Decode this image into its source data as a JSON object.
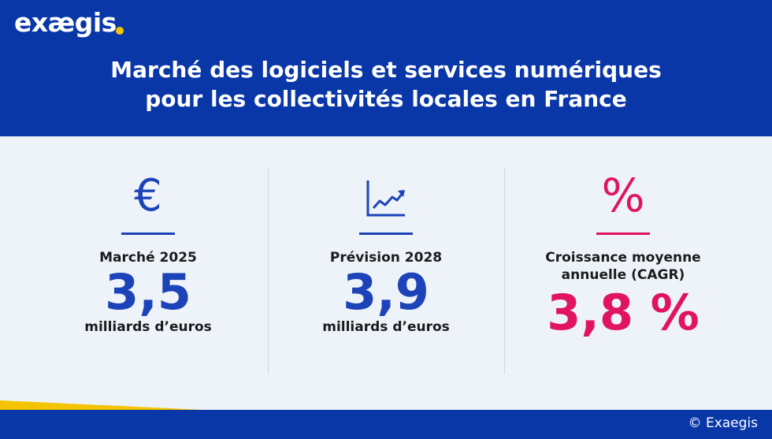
{
  "brand": {
    "name": "exægis",
    "dot_color": "#f5c400"
  },
  "header": {
    "title_line1": "Marché des logiciels et services numériques",
    "title_line2": "pour les collectivités locales en France"
  },
  "stats": [
    {
      "icon": "euro-icon",
      "label": "Marché 2025",
      "value": "3,5",
      "unit": "milliards d’euros",
      "color": "#1d43b8",
      "icon_glyph": "€"
    },
    {
      "icon": "growth-chart-icon",
      "label": "Prévision 2028",
      "value": "3,9",
      "unit": "milliards d’euros",
      "color": "#1d43b8"
    },
    {
      "icon": "percent-icon",
      "label_line1": "Croissance moyenne",
      "label_line2": "annuelle (CAGR)",
      "value": "3,8 %",
      "color": "#e0145f",
      "icon_glyph": "%"
    }
  ],
  "footer": {
    "copyright": "© Exaegis"
  },
  "colors": {
    "primary_blue": "#0a37a8",
    "accent_blue": "#1d43b8",
    "accent_pink": "#e0145f",
    "accent_yellow": "#f5c400",
    "background": "#eef3fa"
  }
}
